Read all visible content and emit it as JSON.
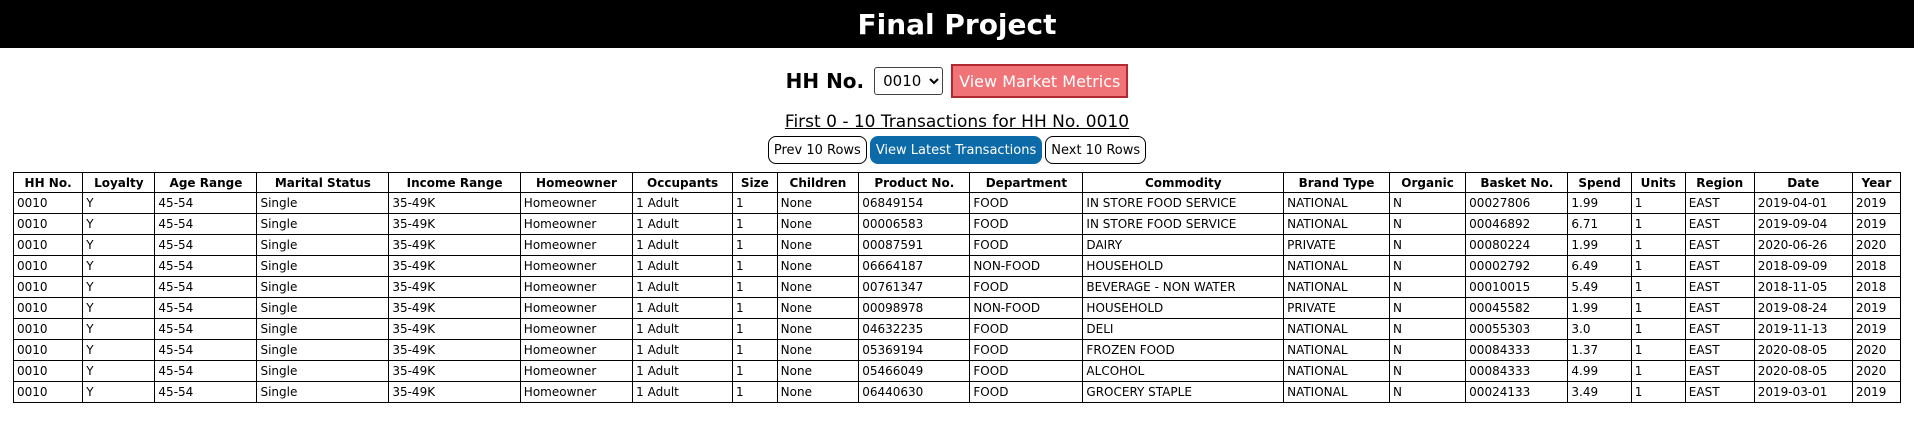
{
  "header": {
    "title": "Final Project"
  },
  "controls": {
    "hh_label": "HH No.",
    "hh_selected": "0010",
    "metrics_button": "View Market Metrics"
  },
  "subtitle": "First 0 - 10 Transactions for HH No. 0010",
  "pager": {
    "prev": "Prev 10 Rows",
    "latest": "View Latest Transactions",
    "next": "Next 10 Rows"
  },
  "table": {
    "columns": [
      "HH No.",
      "Loyalty",
      "Age Range",
      "Marital Status",
      "Income Range",
      "Homeowner",
      "Occupants",
      "Size",
      "Children",
      "Product No.",
      "Department",
      "Commodity",
      "Brand Type",
      "Organic",
      "Basket No.",
      "Spend",
      "Units",
      "Region",
      "Date",
      "Year"
    ],
    "rows": [
      [
        "0010",
        "Y",
        "45-54",
        "Single",
        "35-49K",
        "Homeowner",
        "1 Adult",
        "1",
        "None",
        "06849154",
        "FOOD",
        "IN STORE FOOD SERVICE",
        "NATIONAL",
        "N",
        "00027806",
        "1.99",
        "1",
        "EAST",
        "2019-04-01",
        "2019"
      ],
      [
        "0010",
        "Y",
        "45-54",
        "Single",
        "35-49K",
        "Homeowner",
        "1 Adult",
        "1",
        "None",
        "00006583",
        "FOOD",
        "IN STORE FOOD SERVICE",
        "NATIONAL",
        "N",
        "00046892",
        "6.71",
        "1",
        "EAST",
        "2019-09-04",
        "2019"
      ],
      [
        "0010",
        "Y",
        "45-54",
        "Single",
        "35-49K",
        "Homeowner",
        "1 Adult",
        "1",
        "None",
        "00087591",
        "FOOD",
        "DAIRY",
        "PRIVATE",
        "N",
        "00080224",
        "1.99",
        "1",
        "EAST",
        "2020-06-26",
        "2020"
      ],
      [
        "0010",
        "Y",
        "45-54",
        "Single",
        "35-49K",
        "Homeowner",
        "1 Adult",
        "1",
        "None",
        "06664187",
        "NON-FOOD",
        "HOUSEHOLD",
        "NATIONAL",
        "N",
        "00002792",
        "6.49",
        "1",
        "EAST",
        "2018-09-09",
        "2018"
      ],
      [
        "0010",
        "Y",
        "45-54",
        "Single",
        "35-49K",
        "Homeowner",
        "1 Adult",
        "1",
        "None",
        "00761347",
        "FOOD",
        "BEVERAGE - NON WATER",
        "NATIONAL",
        "N",
        "00010015",
        "5.49",
        "1",
        "EAST",
        "2018-11-05",
        "2018"
      ],
      [
        "0010",
        "Y",
        "45-54",
        "Single",
        "35-49K",
        "Homeowner",
        "1 Adult",
        "1",
        "None",
        "00098978",
        "NON-FOOD",
        "HOUSEHOLD",
        "PRIVATE",
        "N",
        "00045582",
        "1.99",
        "1",
        "EAST",
        "2019-08-24",
        "2019"
      ],
      [
        "0010",
        "Y",
        "45-54",
        "Single",
        "35-49K",
        "Homeowner",
        "1 Adult",
        "1",
        "None",
        "04632235",
        "FOOD",
        "DELI",
        "NATIONAL",
        "N",
        "00055303",
        "3.0",
        "1",
        "EAST",
        "2019-11-13",
        "2019"
      ],
      [
        "0010",
        "Y",
        "45-54",
        "Single",
        "35-49K",
        "Homeowner",
        "1 Adult",
        "1",
        "None",
        "05369194",
        "FOOD",
        "FROZEN FOOD",
        "NATIONAL",
        "N",
        "00084333",
        "1.37",
        "1",
        "EAST",
        "2020-08-05",
        "2020"
      ],
      [
        "0010",
        "Y",
        "45-54",
        "Single",
        "35-49K",
        "Homeowner",
        "1 Adult",
        "1",
        "None",
        "05466049",
        "FOOD",
        "ALCOHOL",
        "NATIONAL",
        "N",
        "00084333",
        "4.99",
        "1",
        "EAST",
        "2020-08-05",
        "2020"
      ],
      [
        "0010",
        "Y",
        "45-54",
        "Single",
        "35-49K",
        "Homeowner",
        "1 Adult",
        "1",
        "None",
        "06440630",
        "FOOD",
        "GROCERY STAPLE",
        "NATIONAL",
        "N",
        "00024133",
        "3.49",
        "1",
        "EAST",
        "2019-03-01",
        "2019"
      ]
    ]
  }
}
